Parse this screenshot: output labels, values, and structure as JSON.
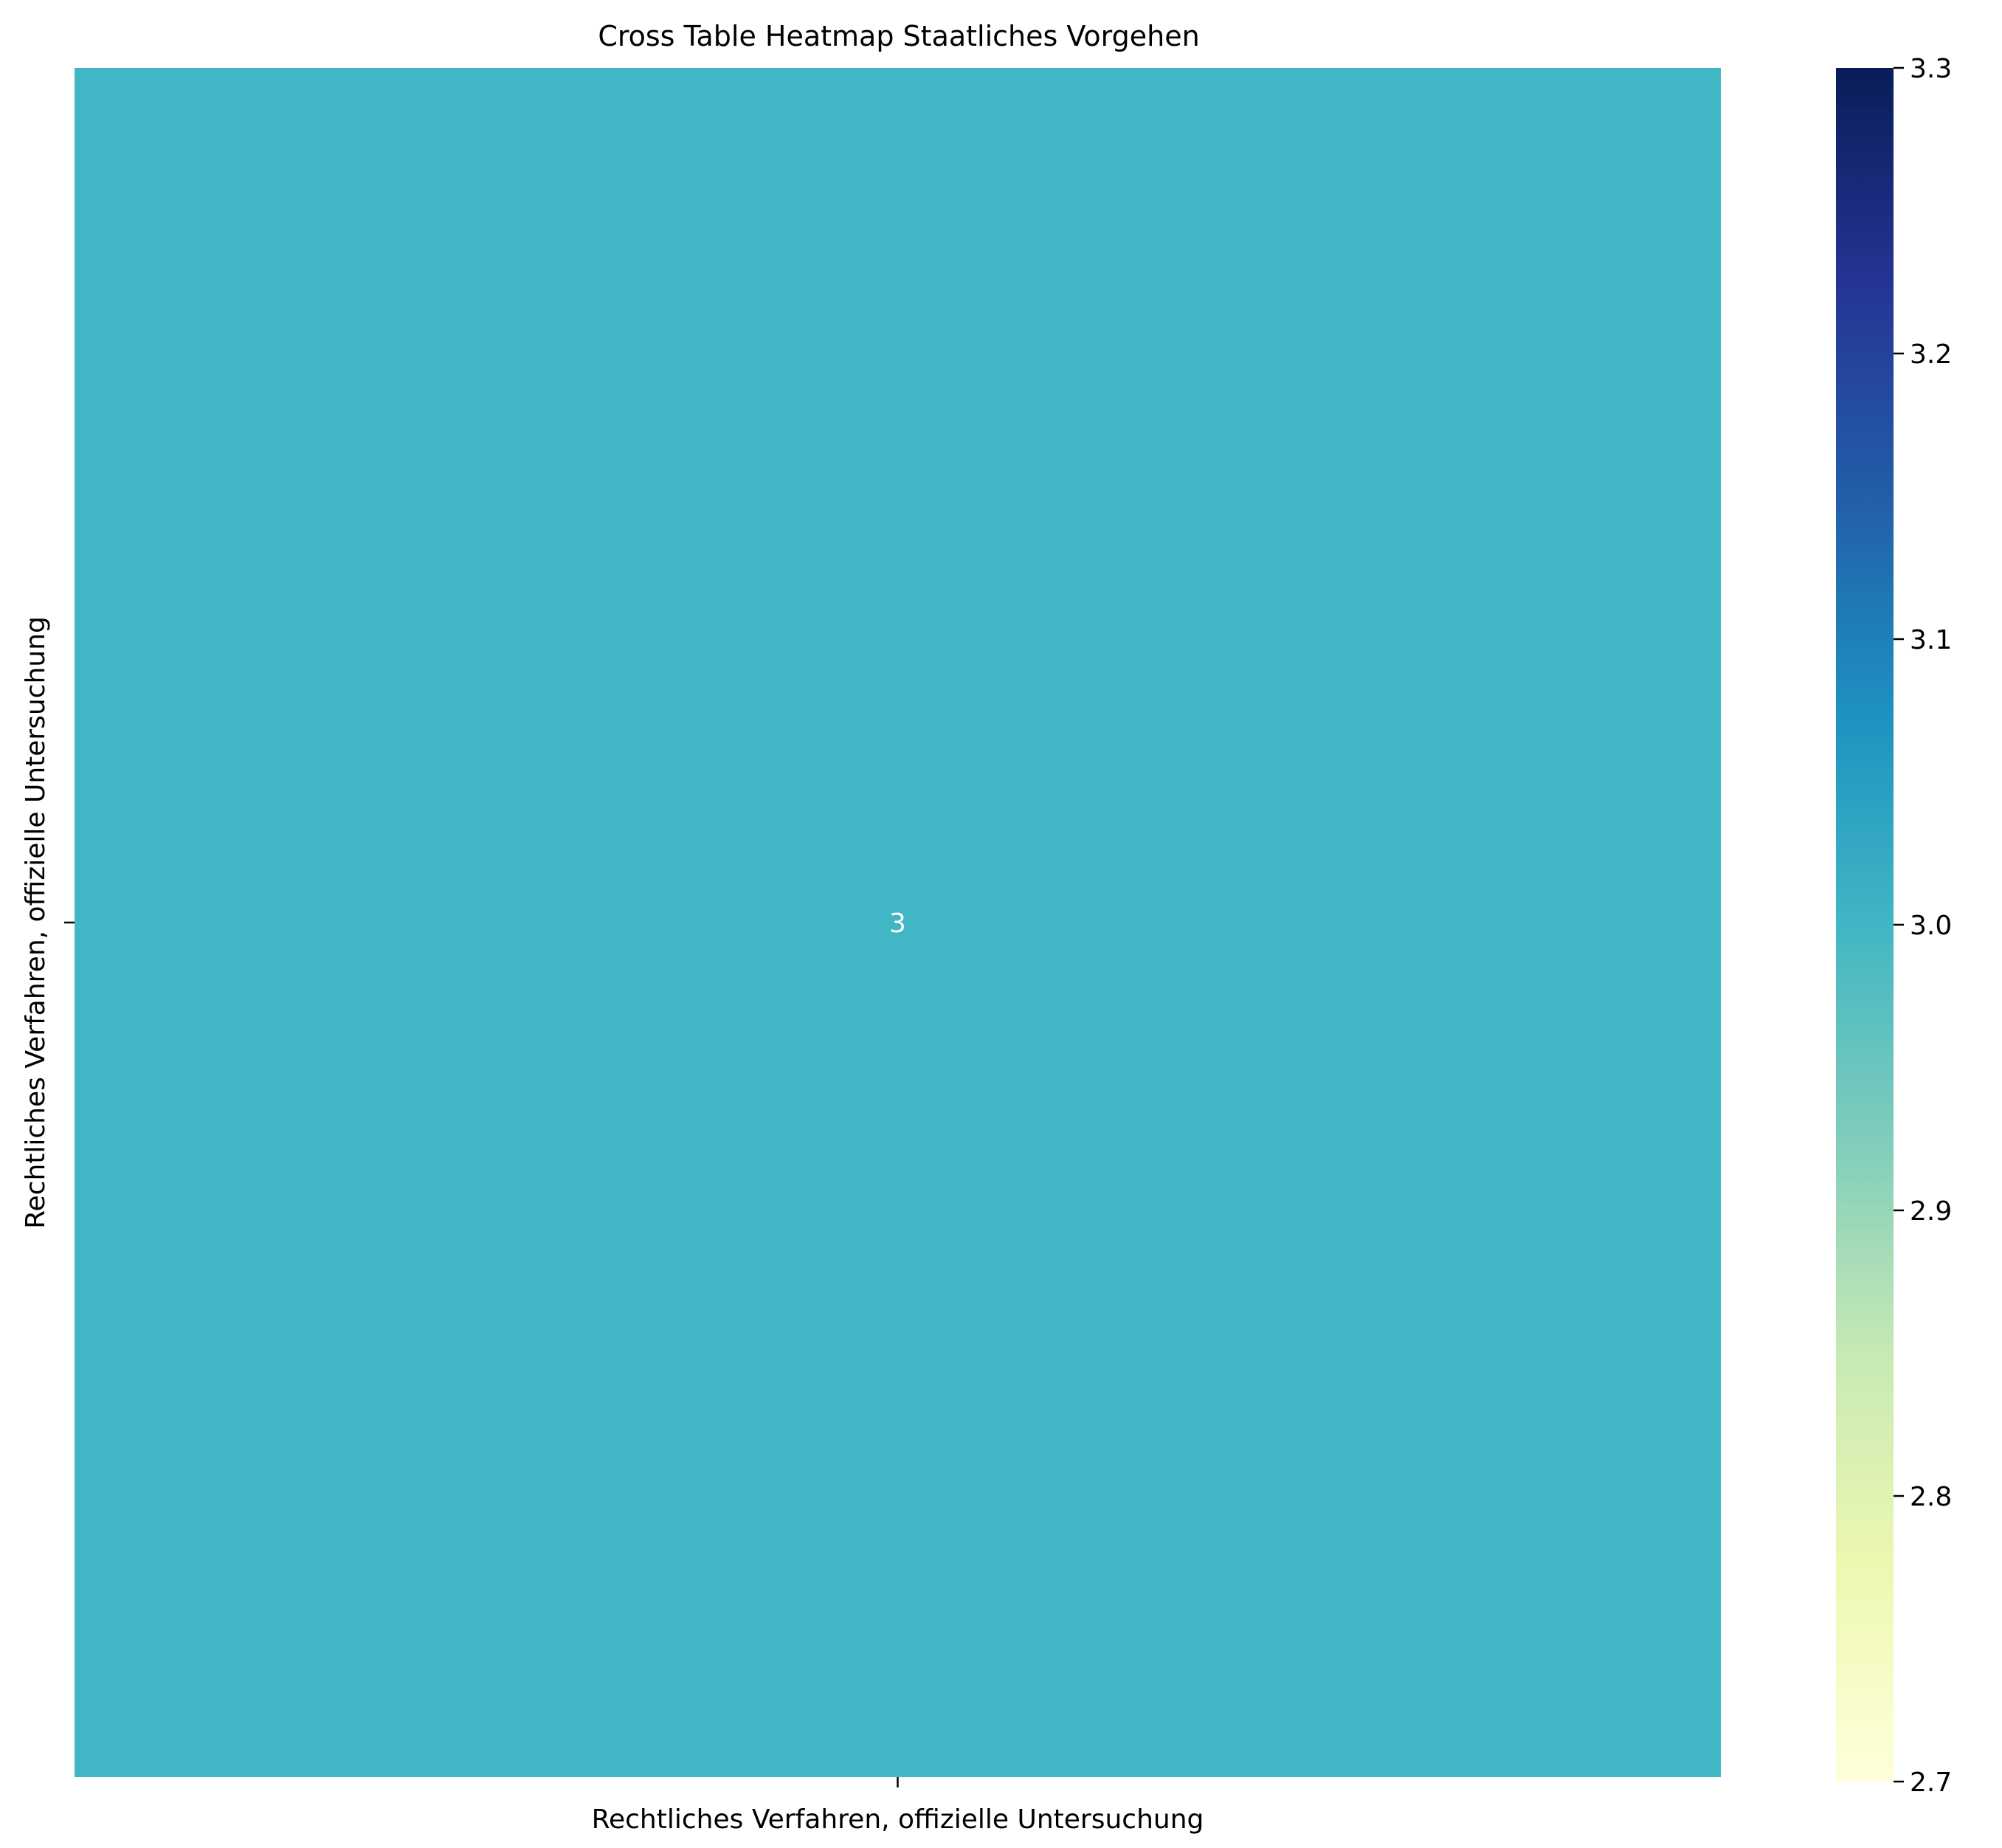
{
  "chart_data": {
    "type": "heatmap",
    "title": "Cross Table Heatmap Staatliches Vorgehen",
    "row_labels": [
      "Rechtliches Verfahren, offizielle Untersuchung"
    ],
    "column_labels": [
      "Rechtliches Verfahren, offizielle Untersuchung"
    ],
    "values": [
      [
        3
      ]
    ],
    "annotations": [
      [
        "3"
      ]
    ],
    "colormap": "YlGnBu",
    "colorbar": {
      "range": [
        2.7,
        3.3
      ],
      "ticks": [
        2.7,
        2.8,
        2.9,
        3.0,
        3.1,
        3.2,
        3.3
      ],
      "tick_labels": [
        "2.7",
        "2.8",
        "2.9",
        "3.0",
        "3.1",
        "3.2",
        "3.3"
      ]
    },
    "cell_color": "#41b6c4",
    "annotation_color": "#ffffff"
  }
}
